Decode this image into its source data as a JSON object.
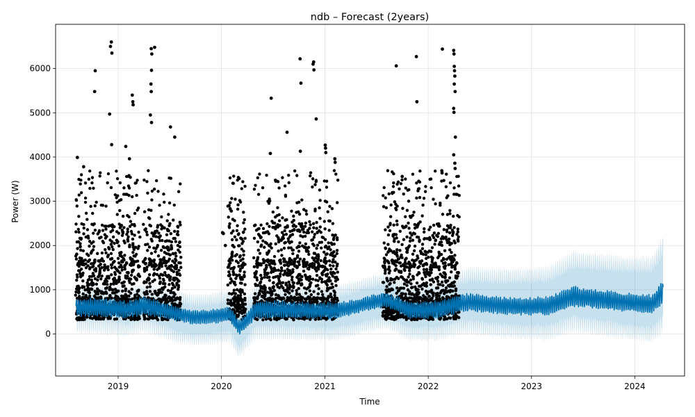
{
  "chart_data": {
    "type": "line",
    "title": "ndb – Forecast (2years)",
    "xlabel": "Time",
    "ylabel": "Power (W)",
    "grid": true,
    "xlim": [
      "2018-05-25",
      "2024-06-25"
    ],
    "ylim": [
      -950,
      7000
    ],
    "x_ticks": [
      {
        "value": "2019-01-01",
        "label": "2019"
      },
      {
        "value": "2020-01-01",
        "label": "2020"
      },
      {
        "value": "2021-01-01",
        "label": "2021"
      },
      {
        "value": "2022-01-01",
        "label": "2022"
      },
      {
        "value": "2023-01-01",
        "label": "2023"
      },
      {
        "value": "2024-01-01",
        "label": "2024"
      }
    ],
    "y_ticks": [
      0,
      1000,
      2000,
      3000,
      4000,
      5000,
      6000
    ],
    "colors": {
      "observed": "#000000",
      "forecast": "#0072B2",
      "uncertainty": "#0072B2",
      "grid": "#e0e0e0"
    },
    "observed_segments": [
      {
        "start": "2018-08-05",
        "end": "2019-03-20"
      },
      {
        "start": "2019-04-01",
        "end": "2019-08-10"
      },
      {
        "start": "2020-01-25",
        "end": "2020-03-25"
      },
      {
        "start": "2020-04-25",
        "end": "2021-02-15"
      },
      {
        "start": "2021-07-25",
        "end": "2022-04-20"
      }
    ],
    "forecast": {
      "x": [
        "2018-08-05",
        "2018-11-01",
        "2019-02-01",
        "2019-04-01",
        "2019-06-01",
        "2019-08-01",
        "2019-10-01",
        "2019-12-01",
        "2020-02-01",
        "2020-03-01",
        "2020-04-01",
        "2020-05-01",
        "2020-08-01",
        "2020-11-01",
        "2021-02-01",
        "2021-05-01",
        "2021-08-01",
        "2021-11-01",
        "2022-02-01",
        "2022-04-01",
        "2022-06-01",
        "2022-09-01",
        "2022-12-01",
        "2023-03-01",
        "2023-06-01",
        "2023-09-01",
        "2023-12-01",
        "2024-03-01",
        "2024-04-10"
      ],
      "y": [
        600,
        600,
        550,
        650,
        550,
        450,
        380,
        400,
        450,
        150,
        300,
        550,
        550,
        530,
        520,
        640,
        780,
        530,
        550,
        650,
        720,
        650,
        620,
        640,
        850,
        780,
        720,
        680,
        950
      ],
      "amplitude": [
        170,
        190,
        170,
        190,
        160,
        150,
        140,
        140,
        150,
        150,
        150,
        170,
        170,
        160,
        160,
        140,
        150,
        170,
        170,
        180,
        180,
        170,
        170,
        180,
        200,
        190,
        180,
        180,
        220
      ]
    },
    "uncertainty_width_below": [
      400,
      430,
      450,
      430,
      480,
      520,
      500,
      500,
      500,
      550,
      500,
      520,
      520,
      520,
      520,
      520,
      520,
      530,
      540,
      540,
      560,
      560,
      580,
      600,
      620,
      640,
      660,
      690,
      700
    ],
    "uncertainty_width_above": [
      350,
      340,
      360,
      340,
      360,
      390,
      390,
      390,
      420,
      430,
      420,
      400,
      400,
      400,
      420,
      450,
      480,
      480,
      500,
      560,
      640,
      660,
      700,
      720,
      830,
      850,
      860,
      900,
      1050
    ],
    "spikes": [
      {
        "x": "2018-12-08",
        "y": 6600
      },
      {
        "x": "2018-12-05",
        "y": 6500
      },
      {
        "x": "2018-12-10",
        "y": 6350
      },
      {
        "x": "2018-10-12",
        "y": 5950
      },
      {
        "x": "2018-10-10",
        "y": 5480
      },
      {
        "x": "2018-12-02",
        "y": 4970
      },
      {
        "x": "2019-02-20",
        "y": 5400
      },
      {
        "x": "2019-02-22",
        "y": 5250
      },
      {
        "x": "2019-02-23",
        "y": 5180
      },
      {
        "x": "2019-04-28",
        "y": 6450
      },
      {
        "x": "2019-05-10",
        "y": 6480
      },
      {
        "x": "2019-04-30",
        "y": 6330
      },
      {
        "x": "2019-04-29",
        "y": 5960
      },
      {
        "x": "2019-04-27",
        "y": 5650
      },
      {
        "x": "2019-04-28",
        "y": 5480
      },
      {
        "x": "2019-04-25",
        "y": 4950
      },
      {
        "x": "2019-04-29",
        "y": 4780
      },
      {
        "x": "2019-07-05",
        "y": 4680
      },
      {
        "x": "2019-07-20",
        "y": 4450
      },
      {
        "x": "2019-01-28",
        "y": 4240
      },
      {
        "x": "2019-02-10",
        "y": 3960
      },
      {
        "x": "2018-08-10",
        "y": 3990
      },
      {
        "x": "2018-09-01",
        "y": 3780
      },
      {
        "x": "2018-12-09",
        "y": 4280
      },
      {
        "x": "2020-06-25",
        "y": 5330
      },
      {
        "x": "2020-08-20",
        "y": 4560
      },
      {
        "x": "2020-10-05",
        "y": 6220
      },
      {
        "x": "2020-10-08",
        "y": 5670
      },
      {
        "x": "2020-11-22",
        "y": 6150
      },
      {
        "x": "2020-11-20",
        "y": 6100
      },
      {
        "x": "2020-11-23",
        "y": 5970
      },
      {
        "x": "2020-12-01",
        "y": 4860
      },
      {
        "x": "2021-01-02",
        "y": 4270
      },
      {
        "x": "2021-01-03",
        "y": 4200
      },
      {
        "x": "2021-01-04",
        "y": 4100
      },
      {
        "x": "2020-10-06",
        "y": 4130
      },
      {
        "x": "2020-06-22",
        "y": 4080
      },
      {
        "x": "2021-02-05",
        "y": 3960
      },
      {
        "x": "2021-02-06",
        "y": 3880
      },
      {
        "x": "2021-09-10",
        "y": 6060
      },
      {
        "x": "2021-11-20",
        "y": 6270
      },
      {
        "x": "2021-11-22",
        "y": 5250
      },
      {
        "x": "2022-02-20",
        "y": 6440
      },
      {
        "x": "2022-04-01",
        "y": 6410
      },
      {
        "x": "2022-04-02",
        "y": 6330
      },
      {
        "x": "2022-04-03",
        "y": 6050
      },
      {
        "x": "2022-04-04",
        "y": 5950
      },
      {
        "x": "2022-04-05",
        "y": 5830
      },
      {
        "x": "2022-04-03",
        "y": 5650
      },
      {
        "x": "2022-04-06",
        "y": 5480
      },
      {
        "x": "2022-04-01",
        "y": 5100
      },
      {
        "x": "2022-04-02",
        "y": 5010
      },
      {
        "x": "2022-04-07",
        "y": 4450
      },
      {
        "x": "2022-04-01",
        "y": 4050
      },
      {
        "x": "2022-04-05",
        "y": 3860
      },
      {
        "x": "2022-04-06",
        "y": 3740
      },
      {
        "x": "2022-02-18",
        "y": 3690
      },
      {
        "x": "2022-02-19",
        "y": 3640
      },
      {
        "x": "2021-10-01",
        "y": 3560
      },
      {
        "x": "2020-01-28",
        "y": 2900
      },
      {
        "x": "2020-02-01",
        "y": 2830
      },
      {
        "x": "2020-02-05",
        "y": 2780
      },
      {
        "x": "2020-01-05",
        "y": 2290
      },
      {
        "x": "2020-01-08",
        "y": 2270
      },
      {
        "x": "2020-03-01",
        "y": 2250
      },
      {
        "x": "2020-02-10",
        "y": 2000
      },
      {
        "x": "2020-01-15",
        "y": 2000
      }
    ]
  }
}
